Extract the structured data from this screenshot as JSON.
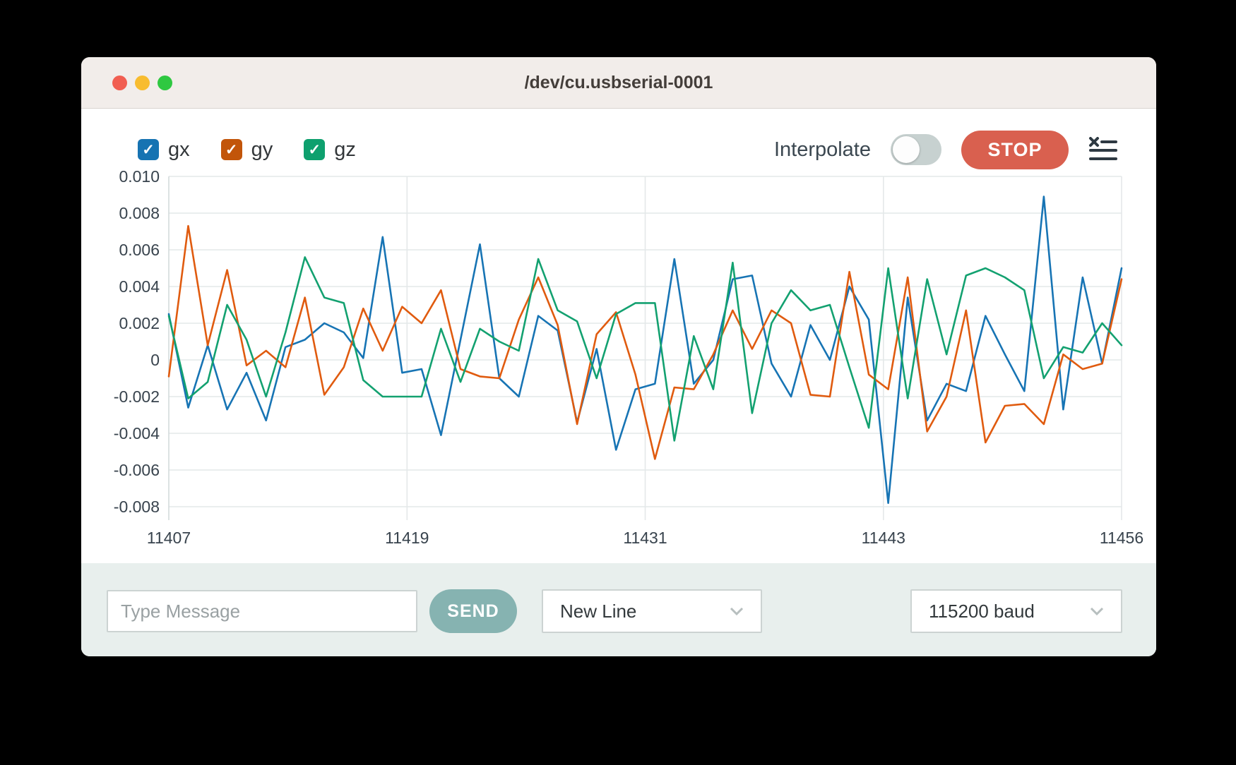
{
  "window": {
    "title": "/dev/cu.usbserial-0001"
  },
  "toolbar": {
    "series_toggles": [
      {
        "label": "gx",
        "checked": true,
        "check_glyph": "✓",
        "color": "#1673b2"
      },
      {
        "label": "gy",
        "checked": true,
        "check_glyph": "✓",
        "color": "#c2550a"
      },
      {
        "label": "gz",
        "checked": true,
        "check_glyph": "✓",
        "color": "#0ea06e"
      }
    ],
    "interpolate_label": "Interpolate",
    "interpolate_on": false,
    "stop_label": "STOP"
  },
  "chart_data": {
    "type": "line",
    "title": "",
    "xlabel": "",
    "ylabel": "",
    "grid": true,
    "legend_position": "top-left-checkboxes",
    "x_range": [
      11407,
      11456
    ],
    "ylim": [
      -0.0087,
      0.01
    ],
    "x_ticks": [
      "11407",
      "11419",
      "11431",
      "11443",
      "11456"
    ],
    "y_ticks": [
      0.01,
      0.008,
      0.006,
      0.004,
      0.002,
      0,
      -0.002,
      -0.004,
      -0.006,
      -0.008
    ],
    "y_tick_labels": [
      "0.010",
      "0.008",
      "0.006",
      "0.004",
      "0.002",
      "0",
      "-0.002",
      "-0.004",
      "-0.006",
      "-0.008"
    ],
    "x": [
      11407,
      11408,
      11409,
      11410,
      11411,
      11412,
      11413,
      11414,
      11415,
      11416,
      11417,
      11418,
      11419,
      11420,
      11421,
      11422,
      11423,
      11424,
      11425,
      11426,
      11427,
      11428,
      11429,
      11430,
      11431,
      11432,
      11433,
      11434,
      11435,
      11436,
      11437,
      11438,
      11439,
      11440,
      11441,
      11442,
      11443,
      11444,
      11445,
      11446,
      11447,
      11448,
      11449,
      11450,
      11451,
      11452,
      11453,
      11454,
      11455,
      11456
    ],
    "series": [
      {
        "name": "gx",
        "color": "#1774b4",
        "values": [
          0.0025,
          -0.0026,
          0.0008,
          -0.0027,
          -0.0007,
          -0.0033,
          0.0007,
          0.0011,
          0.002,
          0.0015,
          0.0001,
          0.0067,
          -0.0007,
          -0.0005,
          -0.0041,
          0.0011,
          0.0063,
          -0.001,
          -0.002,
          0.0024,
          0.0016,
          -0.0034,
          0.0006,
          -0.0049,
          -0.0016,
          -0.0013,
          0.0055,
          -0.0013,
          0.0,
          0.0044,
          0.0046,
          -0.0002,
          -0.002,
          0.0019,
          0.0,
          0.004,
          0.0022,
          -0.0078,
          0.0034,
          -0.0033,
          -0.0013,
          -0.0017,
          0.0024,
          0.0003,
          -0.0017,
          0.0089,
          -0.0027,
          0.0045,
          -0.0002,
          0.005
        ]
      },
      {
        "name": "gy",
        "color": "#e05b0f",
        "values": [
          -0.0009,
          0.0073,
          0.0008,
          0.0049,
          -0.0003,
          0.0005,
          -0.0004,
          0.0034,
          -0.0019,
          -0.0004,
          0.0028,
          0.0005,
          0.0029,
          0.002,
          0.0038,
          -0.0005,
          -0.0009,
          -0.001,
          0.0022,
          0.0045,
          0.0019,
          -0.0035,
          0.0014,
          0.0026,
          -0.0008,
          -0.0054,
          -0.0015,
          -0.0016,
          0.0003,
          0.0027,
          0.0006,
          0.0027,
          0.002,
          -0.0019,
          -0.002,
          0.0048,
          -0.0008,
          -0.0016,
          0.0045,
          -0.0039,
          -0.002,
          0.0027,
          -0.0045,
          -0.0025,
          -0.0024,
          -0.0035,
          0.0003,
          -0.0005,
          -0.0002,
          0.0044
        ]
      },
      {
        "name": "gz",
        "color": "#13a170",
        "values": [
          0.0024,
          -0.0021,
          -0.0012,
          0.003,
          0.0011,
          -0.002,
          0.0015,
          0.0056,
          0.0034,
          0.0031,
          -0.0011,
          -0.002,
          -0.002,
          -0.002,
          0.0017,
          -0.0012,
          0.0017,
          0.001,
          0.0005,
          0.0055,
          0.0027,
          0.0021,
          -0.001,
          0.0025,
          0.0031,
          0.0031,
          -0.0044,
          0.0013,
          -0.0016,
          0.0053,
          -0.0029,
          0.002,
          0.0038,
          0.0027,
          0.003,
          -0.0004,
          -0.0037,
          0.005,
          -0.0021,
          0.0044,
          0.0003,
          0.0046,
          0.005,
          0.0045,
          0.0038,
          -0.001,
          0.0007,
          0.0004,
          0.002,
          0.0008
        ]
      }
    ]
  },
  "bottom_bar": {
    "message_placeholder": "Type Message",
    "message_value": "",
    "send_label": "SEND",
    "line_ending_selected": "New Line",
    "baud_rate_selected": "115200 baud"
  }
}
